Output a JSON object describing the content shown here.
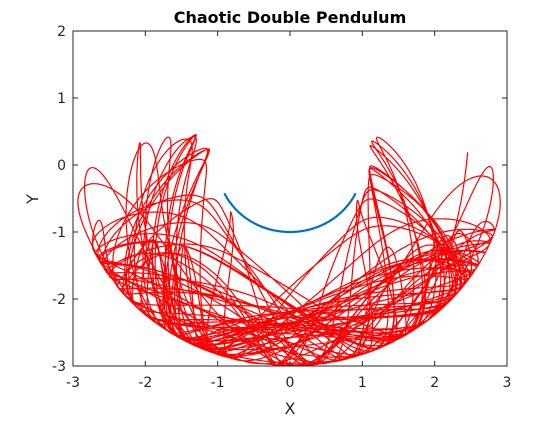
{
  "chart_data": {
    "type": "line",
    "title": "Chaotic Double Pendulum",
    "xlabel": "X",
    "ylabel": "Y",
    "xlim": [
      -3,
      3
    ],
    "ylim": [
      -3,
      2
    ],
    "xticks": [
      "-3",
      "-2",
      "-1",
      "0",
      "1",
      "2",
      "3"
    ],
    "yticks": [
      "-3",
      "-2",
      "-1",
      "0",
      "1",
      "2"
    ],
    "grid": false,
    "colors": {
      "first_bob_path": "#0072BD",
      "second_bob_path": "#FF0000",
      "axes": "#262626"
    },
    "series": [
      {
        "values_description_free": true,
        "shape": "unit-circle-arc",
        "center": [
          0,
          0
        ],
        "radius": 1,
        "theta_range_deg": [
          205,
          335
        ]
      },
      {
        "shape": "chaotic-trajectory",
        "L1": 1,
        "L2": 2,
        "bounds": {
          "x": [
            -3,
            3
          ],
          "y": [
            -3,
            1.45
          ]
        }
      }
    ]
  }
}
